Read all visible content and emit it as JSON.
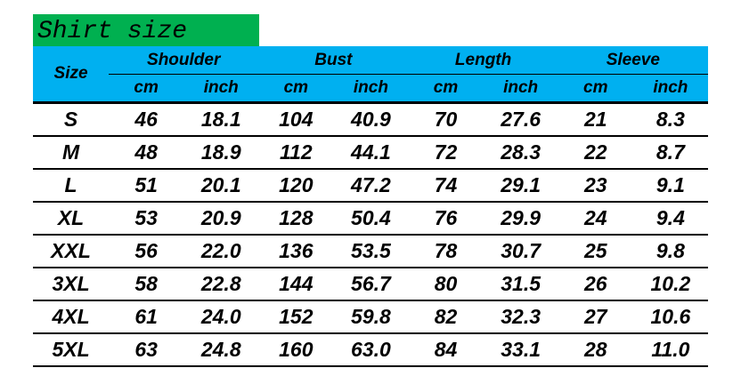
{
  "title": "Shirt size",
  "colors": {
    "title_bg": "#00b050",
    "header_bg": "#00b0f0"
  },
  "header": {
    "size": "Size",
    "groups": [
      "Shoulder",
      "Bust",
      "Length",
      "Sleeve"
    ],
    "units": [
      "cm",
      "inch",
      "cm",
      "inch",
      "cm",
      "inch",
      "cm",
      "inch"
    ]
  },
  "rows": [
    [
      "S",
      "46",
      "18.1",
      "104",
      "40.9",
      "70",
      "27.6",
      "21",
      "8.3"
    ],
    [
      "M",
      "48",
      "18.9",
      "112",
      "44.1",
      "72",
      "28.3",
      "22",
      "8.7"
    ],
    [
      "L",
      "51",
      "20.1",
      "120",
      "47.2",
      "74",
      "29.1",
      "23",
      "9.1"
    ],
    [
      "XL",
      "53",
      "20.9",
      "128",
      "50.4",
      "76",
      "29.9",
      "24",
      "9.4"
    ],
    [
      "XXL",
      "56",
      "22.0",
      "136",
      "53.5",
      "78",
      "30.7",
      "25",
      "9.8"
    ],
    [
      "3XL",
      "58",
      "22.8",
      "144",
      "56.7",
      "80",
      "31.5",
      "26",
      "10.2"
    ],
    [
      "4XL",
      "61",
      "24.0",
      "152",
      "59.8",
      "82",
      "32.3",
      "27",
      "10.6"
    ],
    [
      "5XL",
      "63",
      "24.8",
      "160",
      "63.0",
      "84",
      "33.1",
      "28",
      "11.0"
    ]
  ]
}
